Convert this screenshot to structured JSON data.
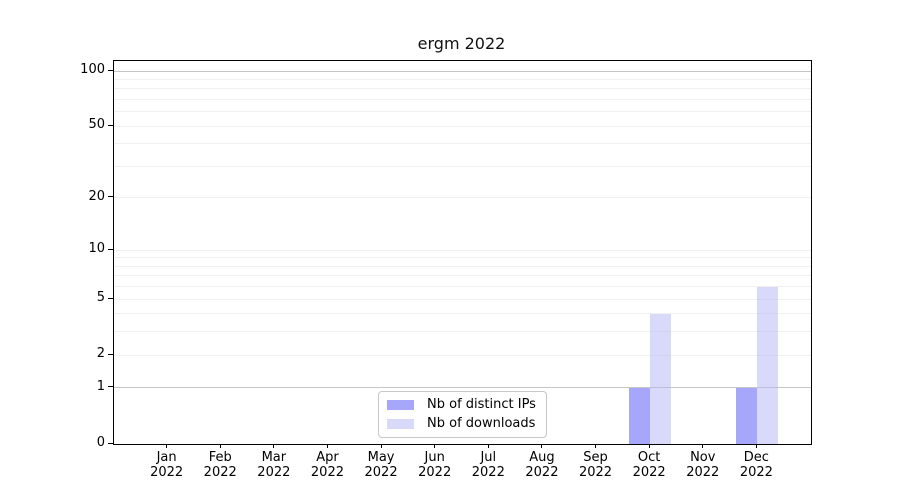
{
  "chart_data": {
    "type": "bar",
    "title": "ergm 2022",
    "categories": [
      {
        "month": "Jan",
        "year": "2022"
      },
      {
        "month": "Feb",
        "year": "2022"
      },
      {
        "month": "Mar",
        "year": "2022"
      },
      {
        "month": "Apr",
        "year": "2022"
      },
      {
        "month": "May",
        "year": "2022"
      },
      {
        "month": "Jun",
        "year": "2022"
      },
      {
        "month": "Jul",
        "year": "2022"
      },
      {
        "month": "Aug",
        "year": "2022"
      },
      {
        "month": "Sep",
        "year": "2022"
      },
      {
        "month": "Oct",
        "year": "2022"
      },
      {
        "month": "Nov",
        "year": "2022"
      },
      {
        "month": "Dec",
        "year": "2022"
      }
    ],
    "series": [
      {
        "name": "Nb of distinct IPs",
        "color": "rgba(85,85,245,0.52)",
        "solid_color": "#a8a8f8",
        "values": [
          0,
          0,
          0,
          0,
          0,
          0,
          0,
          0,
          0,
          1,
          0,
          1
        ]
      },
      {
        "name": "Nb of downloads",
        "color": "rgba(180,180,243,0.5)",
        "solid_color": "#dcdcf8",
        "values": [
          0,
          0,
          0,
          0,
          0,
          0,
          0,
          0,
          0,
          4,
          0,
          6
        ]
      }
    ],
    "xlabel": "",
    "ylabel": "",
    "yscale": "log1p",
    "ylim": [
      0,
      113
    ],
    "yticks": [
      0,
      1,
      2,
      5,
      10,
      20,
      50,
      100
    ],
    "grid_major": [
      1,
      100
    ],
    "grid_minor": [
      2,
      3,
      4,
      5,
      6,
      7,
      8,
      9,
      10,
      20,
      30,
      40,
      50,
      60,
      70,
      80,
      90
    ],
    "grid": "horizontal",
    "legend_position": "inside bottom-center-left",
    "colors": {
      "grid_major_line": "#c6c6c6",
      "grid_minor_line": "#f0f0f0",
      "axis_line": "#000000",
      "background": "#ffffff"
    }
  }
}
